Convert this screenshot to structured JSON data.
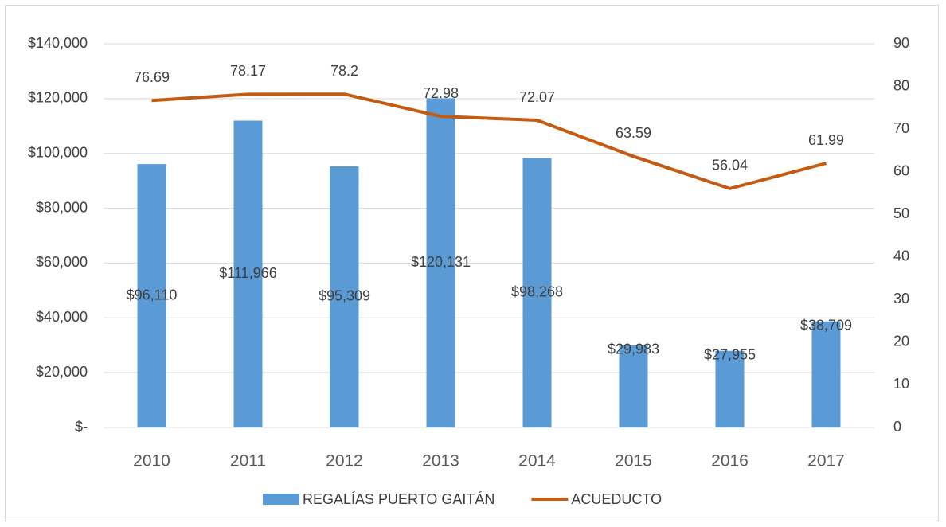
{
  "chart_data": {
    "type": "bar",
    "categories": [
      "2010",
      "2011",
      "2012",
      "2013",
      "2014",
      "2015",
      "2016",
      "2017"
    ],
    "series": [
      {
        "name": "REGALÍAS PUERTO GAITÁN",
        "type": "bar",
        "axis": "y",
        "color": "#5b9bd5",
        "values": [
          96110,
          111966,
          95309,
          120131,
          98268,
          29983,
          27955,
          38709
        ],
        "value_labels": [
          "$96,110",
          "$111,966",
          "$95,309",
          "$120,131",
          "$98,268",
          "$29,983",
          "$27,955",
          "$38,709"
        ]
      },
      {
        "name": "ACUEDUCTO",
        "type": "line",
        "axis": "y2",
        "color": "#c55a11",
        "values": [
          76.69,
          78.17,
          78.2,
          72.98,
          72.07,
          63.59,
          56.04,
          61.99
        ]
      }
    ],
    "ylim": [
      0,
      140000
    ],
    "yticks": [
      {
        "value": 0,
        "label": "$-"
      },
      {
        "value": 20000,
        "label": "$20,000"
      },
      {
        "value": 40000,
        "label": "$40,000"
      },
      {
        "value": 60000,
        "label": "$60,000"
      },
      {
        "value": 80000,
        "label": "$80,000"
      },
      {
        "value": 100000,
        "label": "$100,000"
      },
      {
        "value": 120000,
        "label": "$120,000"
      },
      {
        "value": 140000,
        "label": "$140,000"
      }
    ],
    "y2lim": [
      0,
      90
    ],
    "y2ticks": [
      0,
      10,
      20,
      30,
      40,
      50,
      60,
      70,
      80,
      90
    ],
    "grid": true,
    "legend": "bottom"
  }
}
